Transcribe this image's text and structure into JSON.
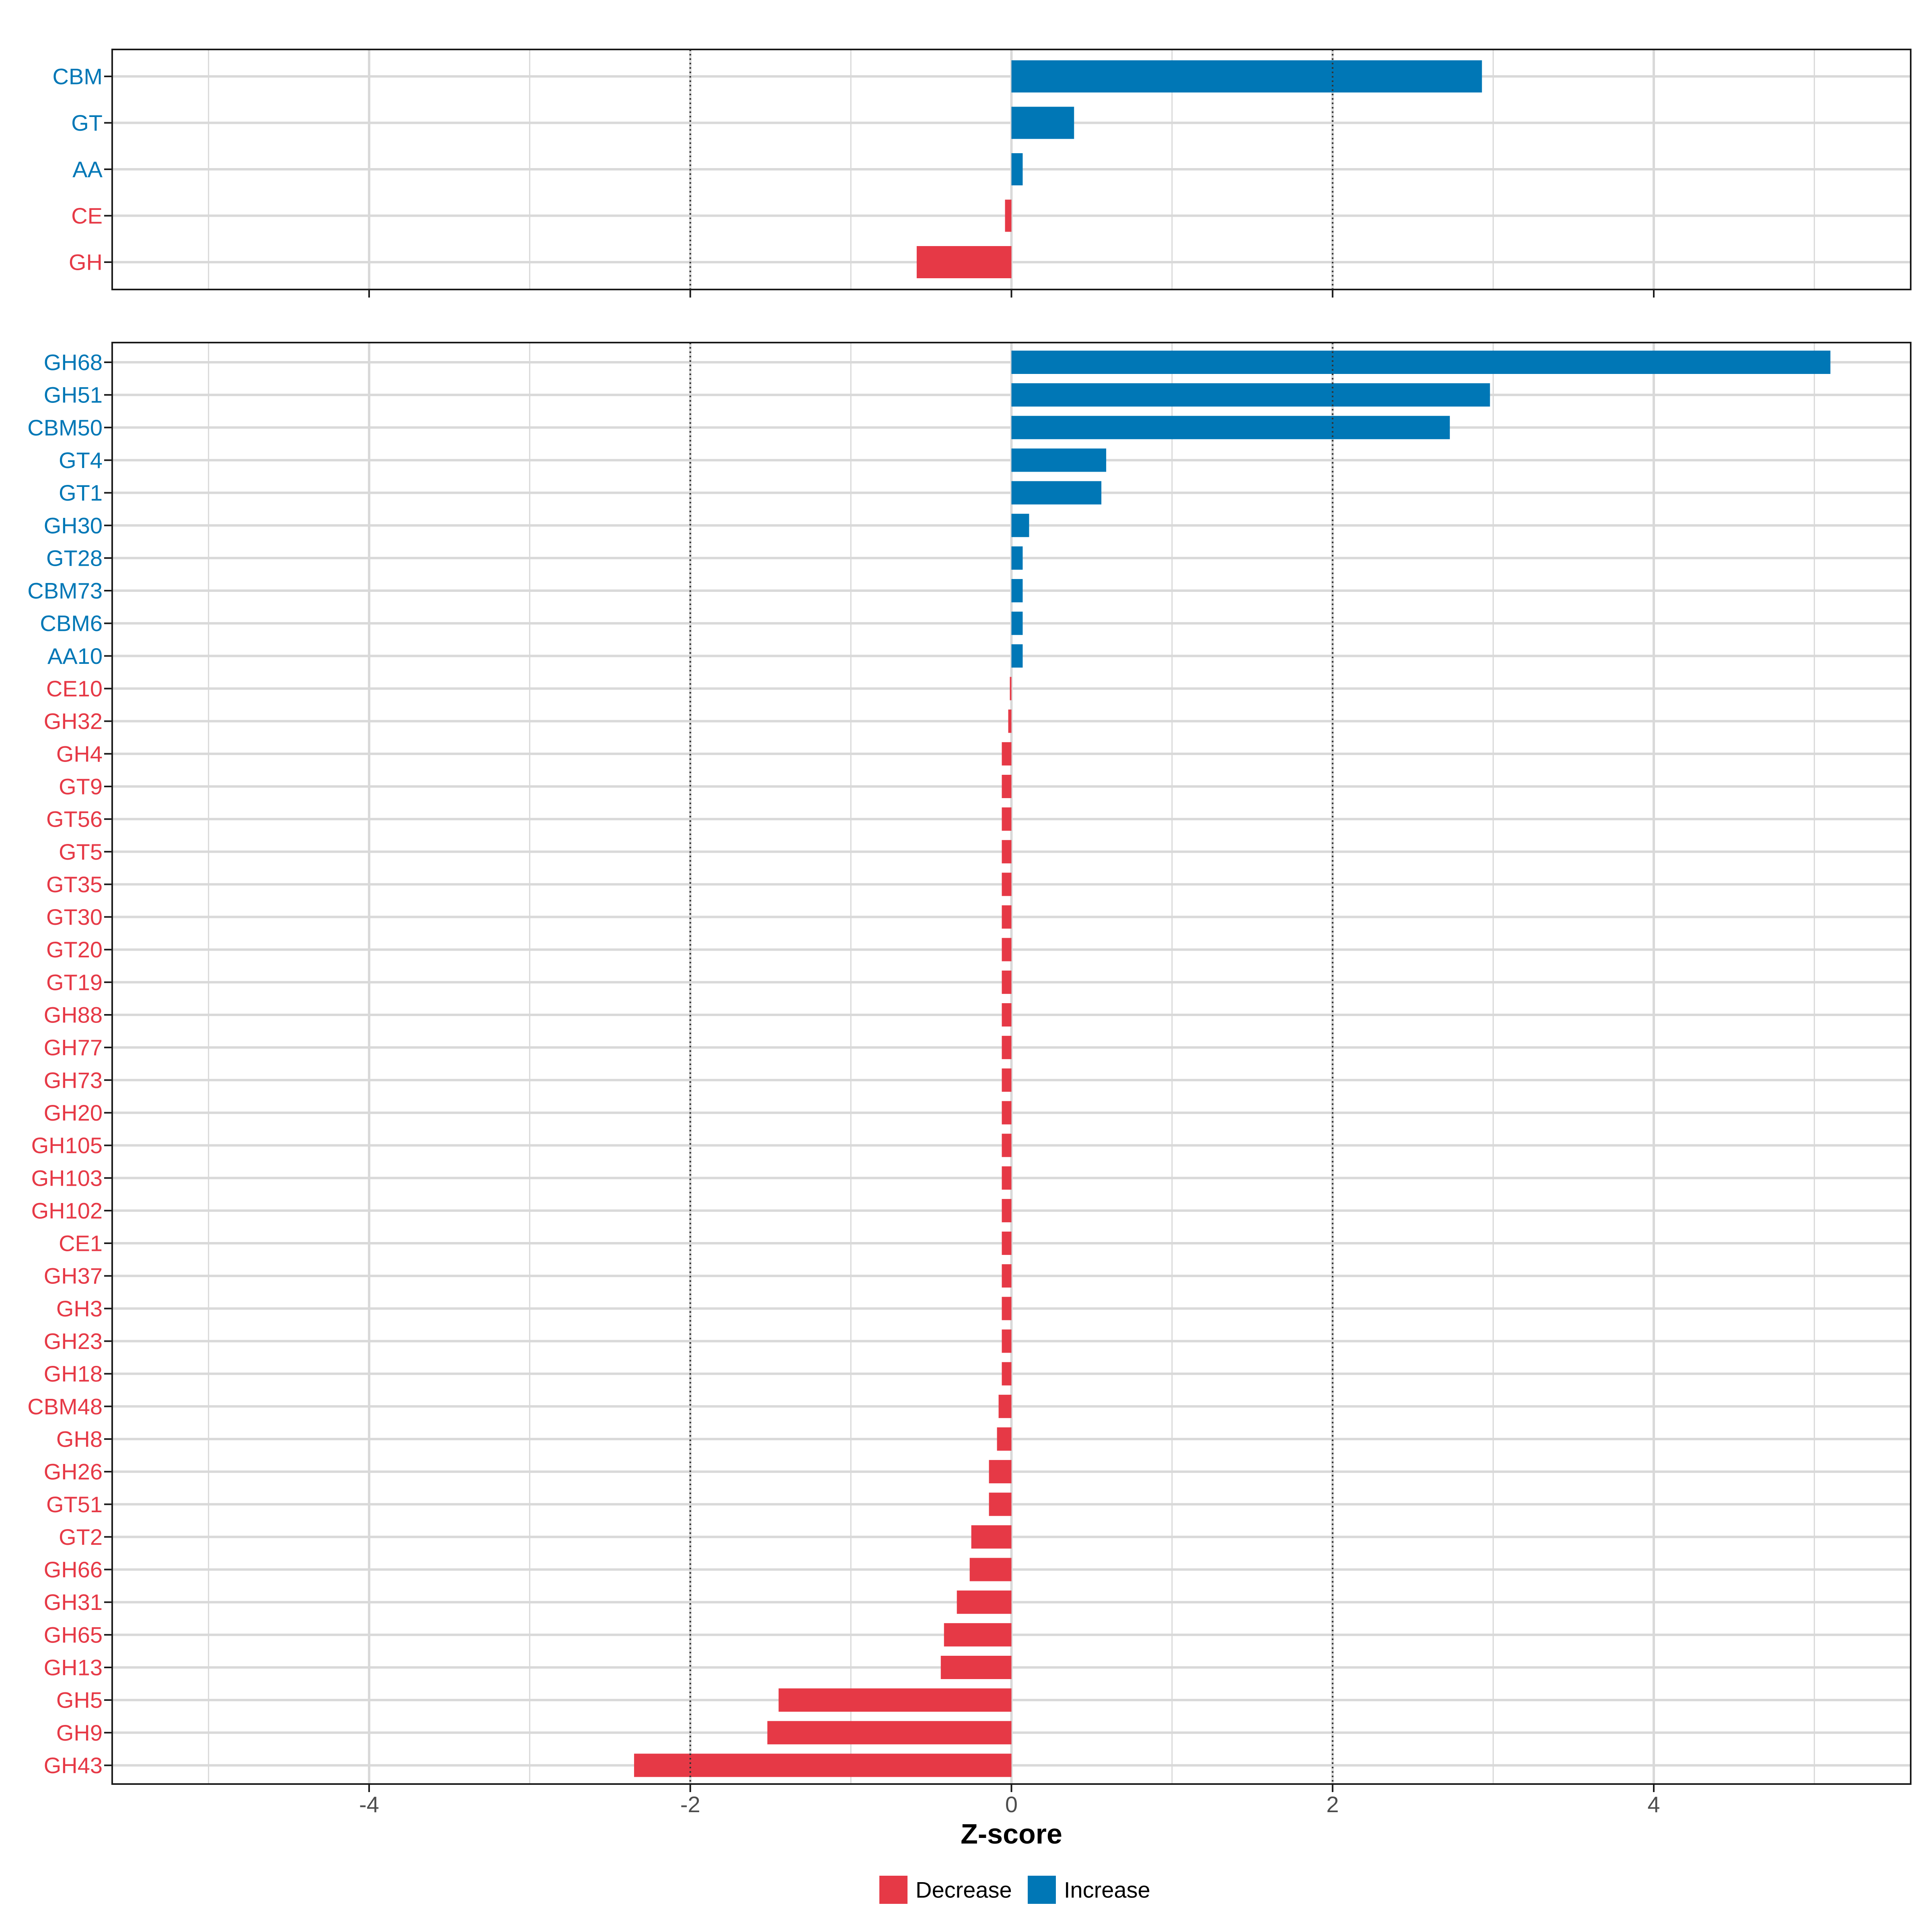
{
  "colors": {
    "decrease": "#E63946",
    "increase": "#0077B6",
    "grid": "#D9D9D9",
    "frame": "#1A1A1A",
    "ref_line": "#333333",
    "tick_text": "#4D4D4D"
  },
  "chart_data": [
    {
      "type": "bar",
      "orientation": "horizontal",
      "panel": "top",
      "categories": [
        "CBM",
        "GT",
        "AA",
        "CE",
        "GH"
      ],
      "values": [
        2.93,
        0.39,
        0.07,
        -0.04,
        -0.59
      ],
      "xlim": [
        -5.6,
        5.6
      ],
      "xticks": [
        -4,
        -2,
        0,
        2,
        4
      ],
      "show_tick_labels": false,
      "reference_lines": [
        -2,
        2
      ],
      "grid": true
    },
    {
      "type": "bar",
      "orientation": "horizontal",
      "panel": "bottom",
      "categories": [
        "GH68",
        "GH51",
        "CBM50",
        "GT4",
        "GT1",
        "GH30",
        "GT28",
        "CBM73",
        "CBM6",
        "AA10",
        "CE10",
        "GH32",
        "GH4",
        "GT9",
        "GT56",
        "GT5",
        "GT35",
        "GT30",
        "GT20",
        "GT19",
        "GH88",
        "GH77",
        "GH73",
        "GH20",
        "GH105",
        "GH103",
        "GH102",
        "CE1",
        "GH37",
        "GH3",
        "GH23",
        "GH18",
        "CBM48",
        "GH8",
        "GH26",
        "GT51",
        "GT2",
        "GH66",
        "GH31",
        "GH65",
        "GH13",
        "GH5",
        "GH9",
        "GH43"
      ],
      "values": [
        5.1,
        2.98,
        2.73,
        0.59,
        0.56,
        0.11,
        0.07,
        0.07,
        0.07,
        0.07,
        -0.01,
        -0.02,
        -0.06,
        -0.06,
        -0.06,
        -0.06,
        -0.06,
        -0.06,
        -0.06,
        -0.06,
        -0.06,
        -0.06,
        -0.06,
        -0.06,
        -0.06,
        -0.06,
        -0.06,
        -0.06,
        -0.06,
        -0.06,
        -0.06,
        -0.06,
        -0.08,
        -0.09,
        -0.14,
        -0.14,
        -0.25,
        -0.26,
        -0.34,
        -0.42,
        -0.44,
        -1.45,
        -1.52,
        -2.35
      ],
      "xlim": [
        -5.6,
        5.6
      ],
      "xticks": [
        -4,
        -2,
        0,
        2,
        4
      ],
      "xtick_labels": [
        "-4",
        "-2",
        "0",
        "2",
        "4"
      ],
      "show_tick_labels": true,
      "reference_lines": [
        -2,
        2
      ],
      "grid": true,
      "xlabel": "Z-score"
    }
  ],
  "legend": {
    "position": "bottom",
    "items": [
      {
        "label": "Decrease",
        "color": "#E63946"
      },
      {
        "label": "Increase",
        "color": "#0077B6"
      }
    ]
  }
}
